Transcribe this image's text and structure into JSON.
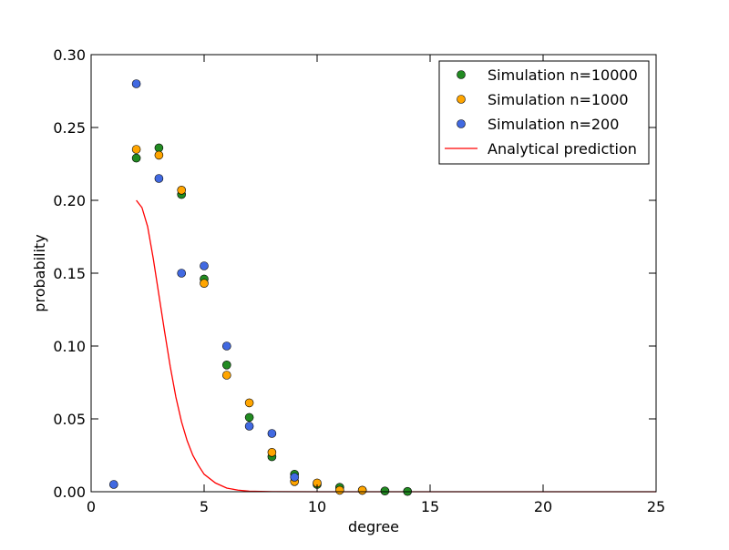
{
  "chart_data": {
    "type": "scatter",
    "xlabel": "degree",
    "ylabel": "probability",
    "xlim": [
      0,
      25
    ],
    "ylim": [
      0.0,
      0.3
    ],
    "x_ticks": [
      "0",
      "5",
      "10",
      "15",
      "20",
      "25"
    ],
    "y_ticks": [
      "0.00",
      "0.05",
      "0.10",
      "0.15",
      "0.20",
      "0.25",
      "0.30"
    ],
    "grid": false,
    "legend_position": "top-right",
    "series": [
      {
        "name": "Simulation n=10000",
        "kind": "markers",
        "color": "#228b22",
        "points": [
          {
            "x": 2,
            "y": 0.229
          },
          {
            "x": 3,
            "y": 0.236
          },
          {
            "x": 4,
            "y": 0.204
          },
          {
            "x": 5,
            "y": 0.146
          },
          {
            "x": 6,
            "y": 0.087
          },
          {
            "x": 7,
            "y": 0.051
          },
          {
            "x": 8,
            "y": 0.024
          },
          {
            "x": 9,
            "y": 0.012
          },
          {
            "x": 10,
            "y": 0.005
          },
          {
            "x": 11,
            "y": 0.003
          },
          {
            "x": 12,
            "y": 0.001
          },
          {
            "x": 13,
            "y": 0.0005
          },
          {
            "x": 14,
            "y": 0.0002
          }
        ]
      },
      {
        "name": "Simulation n=1000",
        "kind": "markers",
        "color": "#ffa500",
        "points": [
          {
            "x": 2,
            "y": 0.235
          },
          {
            "x": 3,
            "y": 0.231
          },
          {
            "x": 4,
            "y": 0.207
          },
          {
            "x": 5,
            "y": 0.143
          },
          {
            "x": 6,
            "y": 0.08
          },
          {
            "x": 7,
            "y": 0.061
          },
          {
            "x": 8,
            "y": 0.027
          },
          {
            "x": 9,
            "y": 0.007
          },
          {
            "x": 10,
            "y": 0.006
          },
          {
            "x": 11,
            "y": 0.001
          },
          {
            "x": 12,
            "y": 0.001
          }
        ]
      },
      {
        "name": "Simulation n=200",
        "kind": "markers",
        "color": "#4169e1",
        "points": [
          {
            "x": 1,
            "y": 0.005
          },
          {
            "x": 2,
            "y": 0.28
          },
          {
            "x": 3,
            "y": 0.215
          },
          {
            "x": 4,
            "y": 0.15
          },
          {
            "x": 5,
            "y": 0.155
          },
          {
            "x": 6,
            "y": 0.1
          },
          {
            "x": 7,
            "y": 0.045
          },
          {
            "x": 8,
            "y": 0.04
          },
          {
            "x": 9,
            "y": 0.01
          }
        ]
      },
      {
        "name": "Analytical prediction",
        "kind": "line",
        "color": "#ff0000",
        "points": [
          {
            "x": 2.0,
            "y": 0.2
          },
          {
            "x": 2.25,
            "y": 0.195
          },
          {
            "x": 2.5,
            "y": 0.182
          },
          {
            "x": 2.75,
            "y": 0.16
          },
          {
            "x": 3.0,
            "y": 0.135
          },
          {
            "x": 3.25,
            "y": 0.11
          },
          {
            "x": 3.5,
            "y": 0.086
          },
          {
            "x": 3.75,
            "y": 0.065
          },
          {
            "x": 4.0,
            "y": 0.048
          },
          {
            "x": 4.25,
            "y": 0.035
          },
          {
            "x": 4.5,
            "y": 0.025
          },
          {
            "x": 4.75,
            "y": 0.018
          },
          {
            "x": 5.0,
            "y": 0.012
          },
          {
            "x": 5.5,
            "y": 0.006
          },
          {
            "x": 6.0,
            "y": 0.0025
          },
          {
            "x": 6.5,
            "y": 0.0011
          },
          {
            "x": 7.0,
            "y": 0.0004
          },
          {
            "x": 8.0,
            "y": 0.0001
          },
          {
            "x": 10.0,
            "y": 0.0
          },
          {
            "x": 25.0,
            "y": 0.0
          }
        ]
      }
    ]
  }
}
